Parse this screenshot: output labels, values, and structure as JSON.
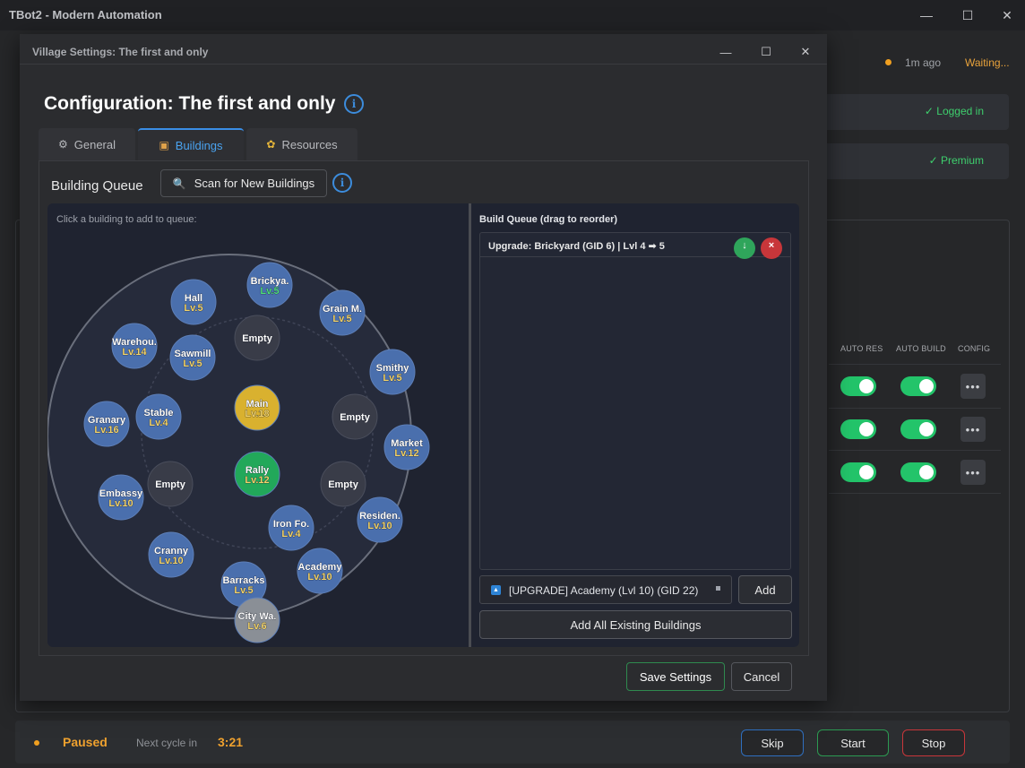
{
  "main_window": {
    "title": "TBot2 - Modern Automation",
    "last_update": "1m ago",
    "status": "Waiting...",
    "login_status": "✓ Logged in",
    "premium_status": "✓ Premium",
    "columns": [
      "AUTO RES",
      "AUTO BUILD",
      "CONFIG"
    ],
    "config_button_label": "•••"
  },
  "bottom_bar": {
    "state": "Paused",
    "next_cycle_label": "Next cycle in",
    "next_cycle_time": "3:21",
    "skip_label": "Skip",
    "start_label": "Start",
    "stop_label": "Stop"
  },
  "dialog": {
    "window_title": "Village Settings: The first and only",
    "heading": "Configuration: The first and only",
    "info_icon_glyph": "i",
    "tabs": [
      {
        "label": "General",
        "icon": "gear-icon"
      },
      {
        "label": "Buildings",
        "icon": "building-icon"
      },
      {
        "label": "Resources",
        "icon": "resources-icon"
      }
    ],
    "active_tab": "Buildings",
    "building_queue_title": "Building Queue",
    "scan_button_label": "Scan for New Buildings",
    "map_hint": "Click a building to add to queue:",
    "buildings": [
      {
        "name": "Brickya.",
        "level": "Lv.5",
        "kind": "resource",
        "queued": true
      },
      {
        "name": "Hall",
        "level": "Lv.5",
        "kind": "resource"
      },
      {
        "name": "Grain M.",
        "level": "Lv.5",
        "kind": "resource"
      },
      {
        "name": "Warehou.",
        "level": "Lv.14",
        "kind": "resource"
      },
      {
        "name": "Sawmill",
        "level": "Lv.5",
        "kind": "resource"
      },
      {
        "name": "Empty",
        "level": "",
        "kind": "empty"
      },
      {
        "name": "Smithy",
        "level": "Lv.5",
        "kind": "resource"
      },
      {
        "name": "Main",
        "level": "Lv.18",
        "kind": "main"
      },
      {
        "name": "Empty",
        "level": "",
        "kind": "empty"
      },
      {
        "name": "Granary",
        "level": "Lv.16",
        "kind": "resource"
      },
      {
        "name": "Stable",
        "level": "Lv.4",
        "kind": "resource"
      },
      {
        "name": "Market",
        "level": "Lv.12",
        "kind": "resource"
      },
      {
        "name": "Embassy",
        "level": "Lv.10",
        "kind": "resource"
      },
      {
        "name": "Empty",
        "level": "",
        "kind": "empty"
      },
      {
        "name": "Rally",
        "level": "Lv.12",
        "kind": "rally"
      },
      {
        "name": "Empty",
        "level": "",
        "kind": "empty"
      },
      {
        "name": "Residen.",
        "level": "Lv.10",
        "kind": "resource"
      },
      {
        "name": "Iron Fo.",
        "level": "Lv.4",
        "kind": "resource"
      },
      {
        "name": "Cranny",
        "level": "Lv.10",
        "kind": "resource"
      },
      {
        "name": "Academy",
        "level": "Lv.10",
        "kind": "resource"
      },
      {
        "name": "Barracks",
        "level": "Lv.5",
        "kind": "resource"
      },
      {
        "name": "City Wa.",
        "level": "Lv.6",
        "kind": "wall"
      }
    ],
    "build_queue_title": "Build Queue (drag to reorder)",
    "queue_items": [
      {
        "label": "Upgrade: Brickyard (GID 6) | Lvl 4 ➡ 5"
      }
    ],
    "selected_option": "[UPGRADE] Academy (Lvl 10) (GID 22)",
    "add_label": "Add",
    "add_all_label": "Add All Existing Buildings",
    "save_label": "Save Settings",
    "cancel_label": "Cancel"
  },
  "colors": {
    "accent_blue": "#3a8ee6",
    "building_blue": "#4a6fad",
    "main_gold": "#d9b12f",
    "rally_green": "#22a85a",
    "status_orange": "#efa12e",
    "toggle_green": "#23c46a"
  }
}
